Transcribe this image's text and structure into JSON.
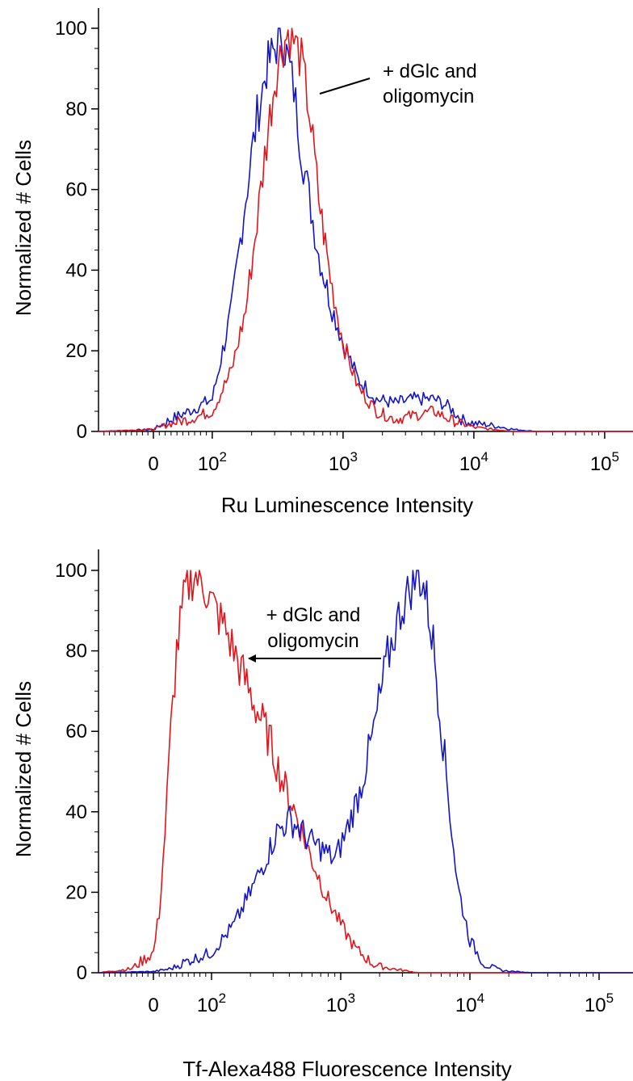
{
  "chart_data": [
    {
      "type": "line",
      "xscale": "biexponential (log above 10^2)",
      "xlabel": "Ru Luminescence Intensity",
      "ylabel": "Normalized # Cells",
      "ylim": [
        0,
        100
      ],
      "yticks": [
        "0",
        "20",
        "40",
        "60",
        "80",
        "100"
      ],
      "xticks": [
        {
          "base": "0",
          "exp": ""
        },
        {
          "base": "10",
          "exp": "2"
        },
        {
          "base": "10",
          "exp": "3"
        },
        {
          "base": "10",
          "exp": "4"
        },
        {
          "base": "10",
          "exp": "5"
        }
      ],
      "annotation": {
        "line1": "+ dGlc and",
        "line2": "oligomycin",
        "pointer": "line"
      },
      "series": [
        {
          "color": "#1414c8",
          "x": [
            -100,
            0,
            30,
            60,
            100,
            140,
            180,
            220,
            260,
            300,
            340,
            380,
            420,
            480,
            550,
            650,
            800,
            1000,
            1300,
            1800,
            2500,
            3500,
            5000,
            6500,
            8000,
            10000,
            14000,
            20000,
            30000,
            60000,
            200000
          ],
          "y": [
            0,
            0.5,
            3,
            5,
            8,
            30,
            58,
            78,
            90,
            95,
            98,
            92,
            85,
            70,
            58,
            44,
            32,
            22,
            13,
            8,
            7,
            8,
            8,
            6,
            3,
            2,
            1.5,
            0.5,
            0,
            0,
            0
          ]
        },
        {
          "color": "#e0161c",
          "x": [
            -100,
            0,
            30,
            60,
            100,
            140,
            180,
            220,
            260,
            300,
            340,
            380,
            420,
            480,
            550,
            650,
            800,
            1000,
            1300,
            1800,
            2500,
            3500,
            5000,
            6500,
            8000,
            10000,
            14000,
            20000,
            30000,
            60000,
            200000
          ],
          "y": [
            0,
            0.5,
            2,
            3,
            5,
            15,
            30,
            52,
            72,
            87,
            95,
            99,
            97,
            92,
            80,
            58,
            38,
            22,
            11,
            5,
            3,
            4,
            5,
            3,
            2,
            1,
            0.5,
            0,
            0,
            0,
            0
          ]
        }
      ]
    },
    {
      "type": "line",
      "xscale": "biexponential (log above 10^2)",
      "xlabel": "Tf-Alexa488 Fluorescence Intensity",
      "ylabel": "Normalized # Cells",
      "ylim": [
        0,
        100
      ],
      "yticks": [
        "0",
        "20",
        "40",
        "60",
        "80",
        "100"
      ],
      "xticks": [
        {
          "base": "0",
          "exp": ""
        },
        {
          "base": "10",
          "exp": "2"
        },
        {
          "base": "10",
          "exp": "3"
        },
        {
          "base": "10",
          "exp": "4"
        },
        {
          "base": "10",
          "exp": "5"
        }
      ],
      "annotation": {
        "line1": "+ dGlc and",
        "line2": "oligomycin",
        "pointer": "arrow-left"
      },
      "series": [
        {
          "color": "#e0161c",
          "x": [
            -100,
            -40,
            0,
            10,
            20,
            30,
            40,
            55,
            70,
            85,
            100,
            130,
            170,
            220,
            280,
            350,
            420,
            500,
            600,
            800,
            1000,
            1300,
            1800,
            2500,
            4000,
            10000,
            200000
          ],
          "y": [
            0,
            1,
            5,
            15,
            35,
            60,
            80,
            95,
            99,
            97,
            92,
            85,
            75,
            66,
            58,
            48,
            42,
            35,
            28,
            18,
            12,
            6,
            2,
            1,
            0,
            0,
            0
          ]
        },
        {
          "color": "#1414c8",
          "x": [
            -100,
            0,
            30,
            60,
            100,
            150,
            200,
            260,
            320,
            400,
            480,
            560,
            700,
            900,
            1100,
            1400,
            1800,
            2300,
            2900,
            3500,
            4000,
            4500,
            5200,
            6000,
            7000,
            8000,
            10000,
            13000,
            18000,
            30000,
            200000
          ],
          "y": [
            0,
            0.3,
            1,
            3,
            5,
            12,
            20,
            28,
            35,
            38,
            36,
            33,
            31,
            28,
            35,
            45,
            60,
            78,
            90,
            96,
            99,
            95,
            82,
            62,
            40,
            22,
            8,
            2,
            0.5,
            0,
            0
          ]
        }
      ]
    }
  ]
}
